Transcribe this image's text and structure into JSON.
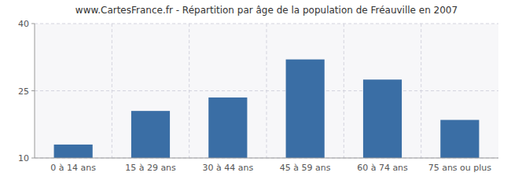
{
  "chart_data": {
    "type": "bar",
    "title": "www.CartesFrance.fr - Répartition par âge de la population de Fréauville en 2007",
    "categories": [
      "0 à 14 ans",
      "15 à 29 ans",
      "30 à 44 ans",
      "45 à 59 ans",
      "60 à 74 ans",
      "75 ans ou plus"
    ],
    "values": [
      13,
      20.5,
      23.5,
      32,
      27.5,
      18.5
    ],
    "color": "#3a6ea5",
    "ylim": [
      10,
      40
    ],
    "yticks": [
      10,
      25,
      40
    ],
    "grid": true
  }
}
